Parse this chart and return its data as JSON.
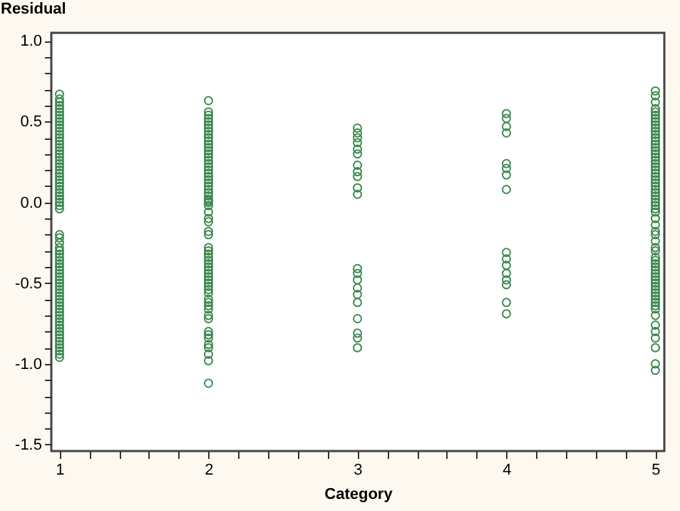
{
  "chart_data": {
    "type": "scatter",
    "xlabel": "Category",
    "ylabel": "Residual",
    "grid": false,
    "legend": false,
    "marker": "circle",
    "xlim": [
      0.945,
      5.06
    ],
    "ylim": [
      -1.54,
      1.05
    ],
    "xticks": [
      1,
      {
        "value": 1.2,
        "label": null
      },
      {
        "value": 1.4,
        "label": null
      },
      {
        "value": 1.6,
        "label": null
      },
      {
        "value": 1.8,
        "label": null
      },
      2,
      {
        "value": 2.2,
        "label": null
      },
      {
        "value": 2.4,
        "label": null
      },
      {
        "value": 2.6,
        "label": null
      },
      {
        "value": 2.8,
        "label": null
      },
      3,
      {
        "value": 3.2,
        "label": null
      },
      {
        "value": 3.4,
        "label": null
      },
      {
        "value": 3.6,
        "label": null
      },
      {
        "value": 3.8,
        "label": null
      },
      4,
      {
        "value": 4.2,
        "label": null
      },
      {
        "value": 4.4,
        "label": null
      },
      {
        "value": 4.6,
        "label": null
      },
      {
        "value": 4.8,
        "label": null
      },
      5
    ],
    "yticks": [
      {
        "value": -1.5,
        "label": "-1.5"
      },
      {
        "value": -1.4,
        "label": null
      },
      {
        "value": -1.3,
        "label": null
      },
      {
        "value": -1.2,
        "label": null
      },
      {
        "value": -1.1,
        "label": null
      },
      {
        "value": -1.0,
        "label": "-1.0"
      },
      {
        "value": -0.9,
        "label": null
      },
      {
        "value": -0.8,
        "label": null
      },
      {
        "value": -0.7,
        "label": null
      },
      {
        "value": -0.6,
        "label": null
      },
      {
        "value": -0.5,
        "label": "-0.5"
      },
      {
        "value": -0.4,
        "label": null
      },
      {
        "value": -0.3,
        "label": null
      },
      {
        "value": -0.2,
        "label": null
      },
      {
        "value": -0.1,
        "label": null
      },
      {
        "value": 0.0,
        "label": "0.0"
      },
      {
        "value": 0.1,
        "label": null
      },
      {
        "value": 0.2,
        "label": null
      },
      {
        "value": 0.3,
        "label": null
      },
      {
        "value": 0.4,
        "label": null
      },
      {
        "value": 0.5,
        "label": "0.5"
      },
      {
        "value": 0.6,
        "label": null
      },
      {
        "value": 0.7,
        "label": null
      },
      {
        "value": 0.8,
        "label": null
      },
      {
        "value": 0.9,
        "label": null
      },
      {
        "value": 1.0,
        "label": "1.0"
      }
    ],
    "series": [
      {
        "color": "#3f8a50",
        "x": [
          1,
          1,
          1,
          1,
          1,
          1,
          1,
          1,
          1,
          1,
          1,
          1,
          1,
          1,
          1,
          1,
          1,
          1,
          1,
          1,
          1,
          1,
          1,
          1,
          1,
          1,
          1,
          1,
          1,
          1,
          1,
          1,
          1,
          1,
          1,
          1,
          1,
          1,
          1,
          1,
          1,
          1,
          1,
          1,
          1,
          1,
          1,
          1,
          1,
          1,
          1,
          1,
          1,
          1,
          1,
          1,
          1,
          1,
          1,
          1,
          1,
          1,
          1,
          1,
          1,
          1,
          1,
          1,
          1,
          1,
          1,
          1,
          1,
          1
        ],
        "values": [
          0.67,
          0.64,
          0.62,
          0.6,
          0.58,
          0.56,
          0.54,
          0.52,
          0.5,
          0.48,
          0.46,
          0.44,
          0.42,
          0.4,
          0.38,
          0.36,
          0.34,
          0.32,
          0.3,
          0.28,
          0.26,
          0.24,
          0.22,
          0.2,
          0.18,
          0.16,
          0.14,
          0.12,
          0.1,
          0.08,
          0.06,
          0.04,
          0.02,
          0.0,
          -0.02,
          -0.04,
          -0.2,
          -0.22,
          -0.25,
          -0.28,
          -0.3,
          -0.32,
          -0.34,
          -0.36,
          -0.38,
          -0.4,
          -0.42,
          -0.44,
          -0.46,
          -0.48,
          -0.5,
          -0.52,
          -0.54,
          -0.56,
          -0.58,
          -0.6,
          -0.62,
          -0.64,
          -0.66,
          -0.68,
          -0.7,
          -0.72,
          -0.74,
          -0.76,
          -0.78,
          -0.8,
          -0.82,
          -0.84,
          -0.86,
          -0.88,
          -0.9,
          -0.92,
          -0.94,
          -0.96
        ]
      },
      {
        "color": "#3f8a50",
        "x": [
          2,
          2,
          2,
          2,
          2,
          2,
          2,
          2,
          2,
          2,
          2,
          2,
          2,
          2,
          2,
          2,
          2,
          2,
          2,
          2,
          2,
          2,
          2,
          2,
          2,
          2,
          2,
          2,
          2,
          2,
          2,
          2,
          2,
          2,
          2,
          2,
          2,
          2,
          2,
          2,
          2,
          2,
          2,
          2,
          2,
          2,
          2,
          2,
          2,
          2,
          2,
          2,
          2,
          2,
          2,
          2,
          2,
          2,
          2,
          2,
          2,
          2,
          2,
          2,
          2,
          2
        ],
        "values": [
          0.63,
          0.56,
          0.54,
          0.52,
          0.5,
          0.48,
          0.46,
          0.44,
          0.42,
          0.4,
          0.38,
          0.36,
          0.34,
          0.32,
          0.3,
          0.28,
          0.26,
          0.24,
          0.22,
          0.2,
          0.18,
          0.16,
          0.14,
          0.12,
          0.1,
          0.08,
          0.06,
          0.04,
          0.02,
          0.0,
          -0.02,
          -0.06,
          -0.1,
          -0.12,
          -0.18,
          -0.2,
          -0.28,
          -0.3,
          -0.32,
          -0.34,
          -0.36,
          -0.38,
          -0.4,
          -0.42,
          -0.44,
          -0.46,
          -0.48,
          -0.5,
          -0.52,
          -0.54,
          -0.56,
          -0.6,
          -0.62,
          -0.64,
          -0.66,
          -0.7,
          -0.72,
          -0.8,
          -0.82,
          -0.84,
          -0.88,
          -0.9,
          -0.94,
          -0.98,
          -1.12,
          0.01
        ]
      },
      {
        "color": "#3f8a50",
        "x": [
          3,
          3,
          3,
          3,
          3,
          3,
          3,
          3,
          3,
          3,
          3,
          3,
          3,
          3,
          3,
          3,
          3,
          3,
          3,
          3,
          3
        ],
        "values": [
          0.46,
          0.43,
          0.4,
          0.37,
          0.33,
          0.3,
          0.23,
          0.19,
          0.16,
          0.09,
          0.05,
          -0.41,
          -0.44,
          -0.48,
          -0.53,
          -0.57,
          -0.62,
          -0.72,
          -0.81,
          -0.84,
          -0.9
        ]
      },
      {
        "color": "#3f8a50",
        "x": [
          4,
          4,
          4,
          4,
          4,
          4,
          4,
          4,
          4,
          4,
          4,
          4,
          4,
          4,
          4,
          4
        ],
        "values": [
          0.55,
          0.52,
          0.47,
          0.43,
          0.24,
          0.21,
          0.17,
          0.08,
          -0.31,
          -0.35,
          -0.39,
          -0.44,
          -0.48,
          -0.51,
          -0.62,
          -0.69
        ]
      },
      {
        "color": "#3f8a50",
        "x": [
          5,
          5,
          5,
          5,
          5,
          5,
          5,
          5,
          5,
          5,
          5,
          5,
          5,
          5,
          5,
          5,
          5,
          5,
          5,
          5,
          5,
          5,
          5,
          5,
          5,
          5,
          5,
          5,
          5,
          5,
          5,
          5,
          5,
          5,
          5,
          5,
          5,
          5,
          5,
          5,
          5,
          5,
          5,
          5,
          5,
          5,
          5,
          5,
          5,
          5,
          5,
          5,
          5,
          5,
          5,
          5,
          5,
          5,
          5,
          5,
          5,
          5,
          5,
          5,
          5,
          5,
          5
        ],
        "values": [
          0.69,
          0.66,
          0.62,
          0.58,
          0.56,
          0.54,
          0.52,
          0.5,
          0.48,
          0.46,
          0.44,
          0.42,
          0.4,
          0.38,
          0.36,
          0.34,
          0.32,
          0.3,
          0.28,
          0.26,
          0.24,
          0.22,
          0.2,
          0.18,
          0.16,
          0.14,
          0.12,
          0.1,
          0.08,
          0.06,
          0.04,
          0.02,
          0.0,
          -0.04,
          -0.06,
          -0.1,
          -0.14,
          -0.18,
          -0.2,
          -0.24,
          -0.28,
          -0.3,
          -0.34,
          -0.36,
          -0.38,
          -0.4,
          -0.42,
          -0.44,
          -0.46,
          -0.48,
          -0.5,
          -0.52,
          -0.54,
          -0.56,
          -0.58,
          -0.6,
          -0.62,
          -0.64,
          -0.66,
          -0.7,
          -0.76,
          -0.8,
          -0.84,
          -0.9,
          -1.0,
          -1.04,
          -0.02
        ]
      }
    ]
  }
}
